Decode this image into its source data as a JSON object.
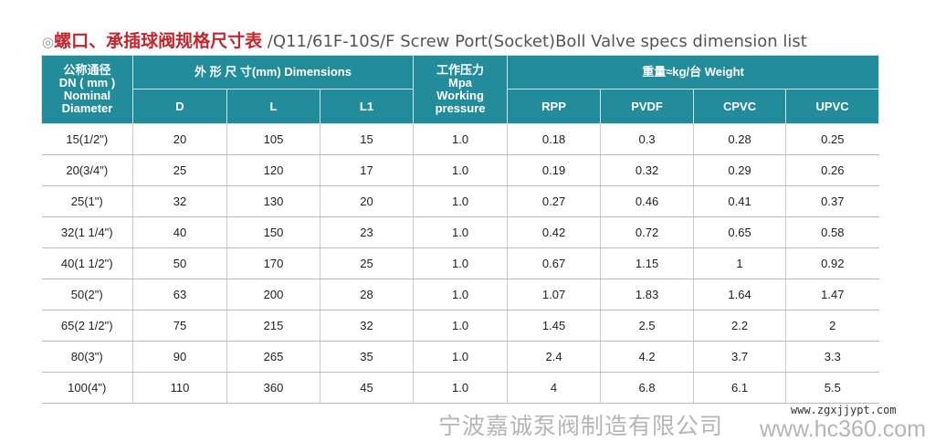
{
  "title": {
    "mark": "◎",
    "cn": "螺口、承插球阀规格尺寸表",
    "en": " /Q11/61F-10S/F Screw Port(Socket)Boll Valve specs dimension list"
  },
  "header": {
    "dn": [
      "公称通径",
      "DN ( mm )",
      "Nominal",
      "Diameter"
    ],
    "dimensions": "外 形 尺 寸(mm) Dimensions",
    "pressure": [
      "工作压力",
      "Mpa",
      "Working",
      "pressure"
    ],
    "weight": "重量≈kg/台 Weight",
    "sub": [
      "D",
      "L",
      "L1",
      "RPP",
      "PVDF",
      "CPVC",
      "UPVC"
    ]
  },
  "rows": [
    [
      "15(1/2\")",
      "20",
      "105",
      "15",
      "1.0",
      "0.18",
      "0.3",
      "0.28",
      "0.25"
    ],
    [
      "20(3/4\")",
      "25",
      "120",
      "17",
      "1.0",
      "0.19",
      "0.32",
      "0.29",
      "0.26"
    ],
    [
      "25(1\")",
      "32",
      "130",
      "20",
      "1.0",
      "0.27",
      "0.46",
      "0.41",
      "0.37"
    ],
    [
      "32(1 1/4\")",
      "40",
      "150",
      "23",
      "1.0",
      "0.42",
      "0.72",
      "0.65",
      "0.58"
    ],
    [
      "40(1 1/2\")",
      "50",
      "170",
      "25",
      "1.0",
      "0.67",
      "1.15",
      "1",
      "0.92"
    ],
    [
      "50(2\")",
      "63",
      "200",
      "28",
      "1.0",
      "1.07",
      "1.83",
      "1.64",
      "1.47"
    ],
    [
      "65(2 1/2\")",
      "75",
      "215",
      "32",
      "1.0",
      "1.45",
      "2.5",
      "2.2",
      "2"
    ],
    [
      "80(3\")",
      "90",
      "265",
      "35",
      "1.0",
      "2.4",
      "4.2",
      "3.7",
      "3.3"
    ],
    [
      "100(4\")",
      "110",
      "360",
      "45",
      "1.0",
      "4",
      "6.8",
      "6.1",
      "5.5"
    ]
  ],
  "watermark": {
    "company": "宁波嘉诚泵阀制造有限公司",
    "url1": "www.zgxjjypt.com",
    "url2": "www.hc360.com"
  }
}
